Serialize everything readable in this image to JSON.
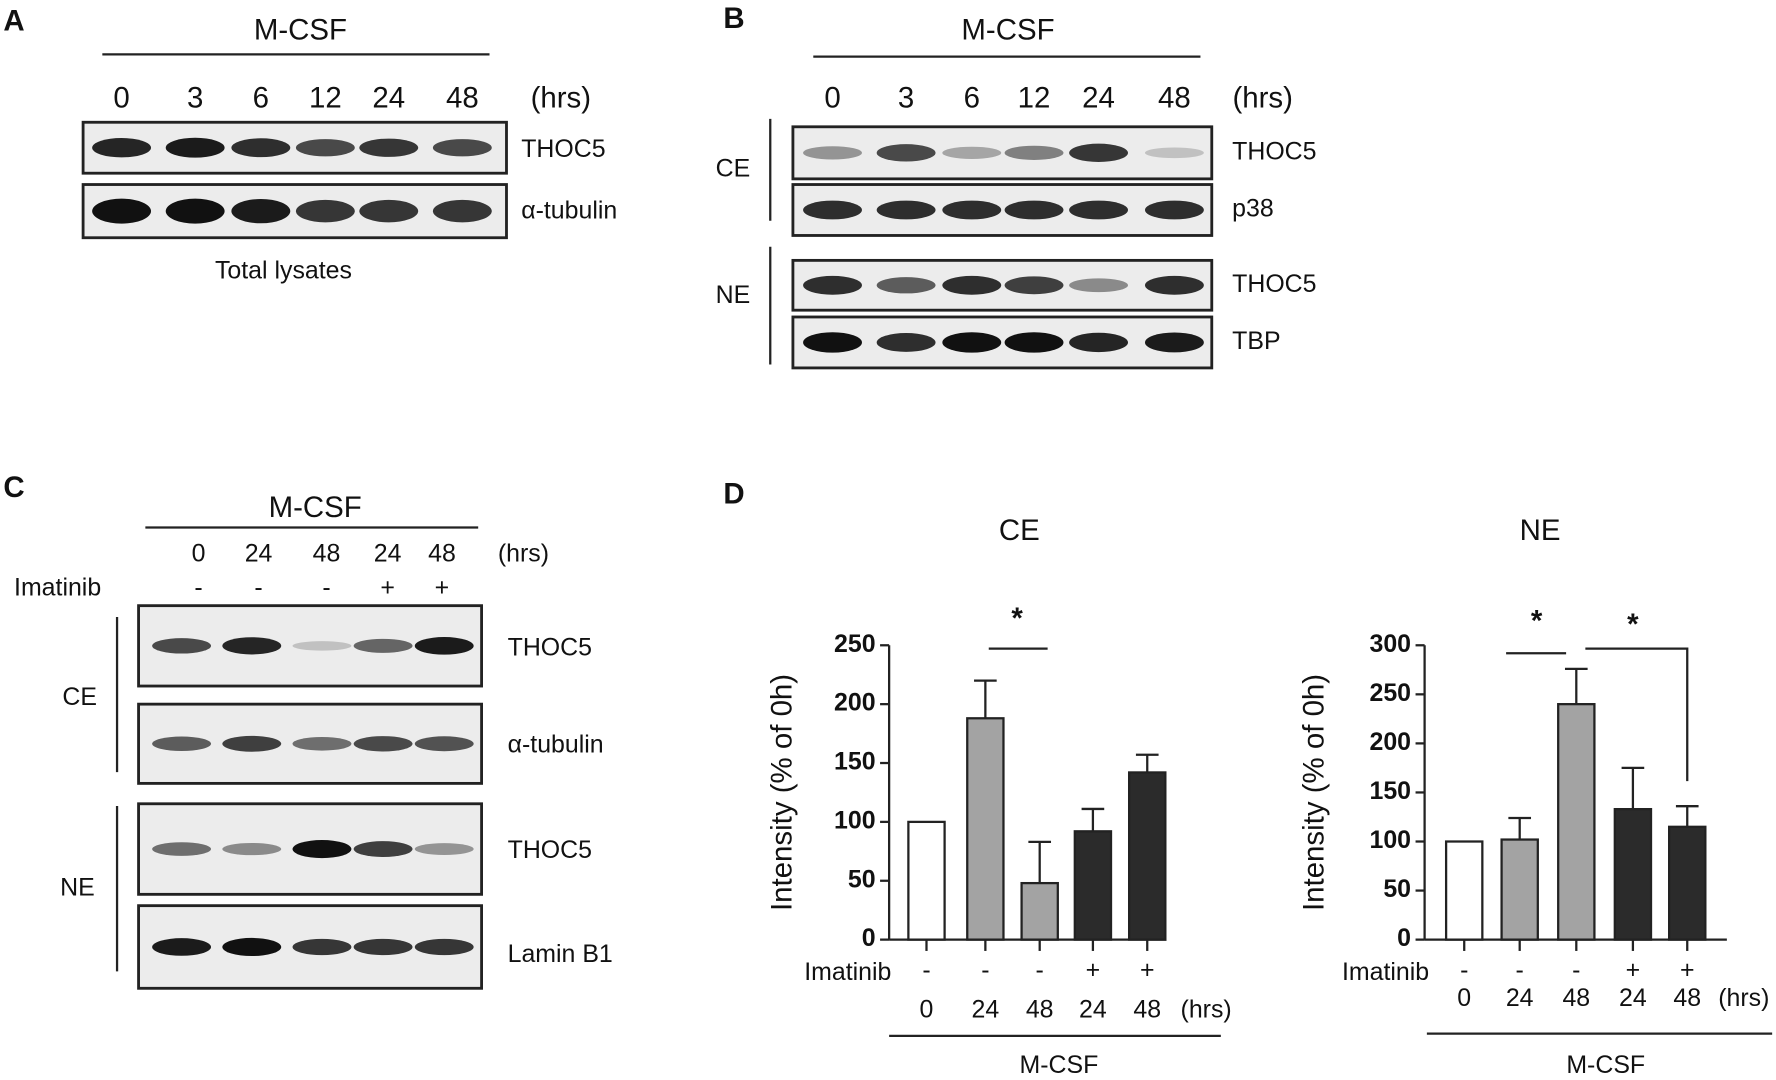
{
  "panels": {
    "A": {
      "label": "A",
      "treatment": "M-CSF",
      "times": [
        "0",
        "3",
        "6",
        "12",
        "24",
        "48"
      ],
      "unit": "(hrs)",
      "rows": [
        "THOC5",
        "α-tubulin"
      ],
      "caption": "Total lysates"
    },
    "B": {
      "label": "B",
      "treatment": "M-CSF",
      "times": [
        "0",
        "3",
        "6",
        "12",
        "24",
        "48"
      ],
      "unit": "(hrs)",
      "groups": [
        {
          "name": "CE",
          "rows": [
            "THOC5",
            "p38"
          ]
        },
        {
          "name": "NE",
          "rows": [
            "THOC5",
            "TBP"
          ]
        }
      ]
    },
    "C": {
      "label": "C",
      "treatment": "M-CSF",
      "times": [
        "0",
        "24",
        "48",
        "24",
        "48"
      ],
      "unit": "(hrs)",
      "imatinib_label": "Imatinib",
      "imatinib": [
        "-",
        "-",
        "-",
        "+",
        "+"
      ],
      "groups": [
        {
          "name": "CE",
          "rows": [
            "THOC5",
            "α-tubulin"
          ]
        },
        {
          "name": "NE",
          "rows": [
            "THOC5",
            "Lamin B1"
          ]
        }
      ]
    },
    "D": {
      "label": "D"
    }
  },
  "chart_data": [
    {
      "type": "bar",
      "title": "CE",
      "y_label": "Intensity (% of 0h)",
      "categories": [
        "0",
        "24",
        "48",
        "24",
        "48"
      ],
      "unit": "(hrs)",
      "values": [
        100,
        188,
        48,
        92,
        142
      ],
      "errors": [
        null,
        32,
        35,
        19,
        15
      ],
      "colors": [
        "#ffffff",
        "#a3a3a3",
        "#a3a3a3",
        "#2b2b2b",
        "#2b2b2b"
      ],
      "ylim": [
        0,
        250
      ],
      "yticks": [
        0,
        50,
        100,
        150,
        200,
        250
      ],
      "imatinib_label": "Imatinib",
      "imatinib": [
        "-",
        "-",
        "-",
        "+",
        "+"
      ],
      "group_label": "M-CSF",
      "annotations": [
        "*"
      ]
    },
    {
      "type": "bar",
      "title": "NE",
      "y_label": "Intensity (% of 0h)",
      "categories": [
        "0",
        "24",
        "48",
        "24",
        "48"
      ],
      "unit": "(hrs)",
      "values": [
        100,
        102,
        240,
        133,
        115
      ],
      "errors": [
        null,
        22,
        36,
        42,
        21
      ],
      "colors": [
        "#ffffff",
        "#a3a3a3",
        "#a3a3a3",
        "#2b2b2b",
        "#2b2b2b"
      ],
      "ylim": [
        0,
        300
      ],
      "yticks": [
        0,
        50,
        100,
        150,
        200,
        250,
        300
      ],
      "imatinib_label": "Imatinib",
      "imatinib": [
        "-",
        "-",
        "-",
        "+",
        "+"
      ],
      "group_label": "M-CSF",
      "annotations": [
        "*",
        "*"
      ]
    }
  ]
}
